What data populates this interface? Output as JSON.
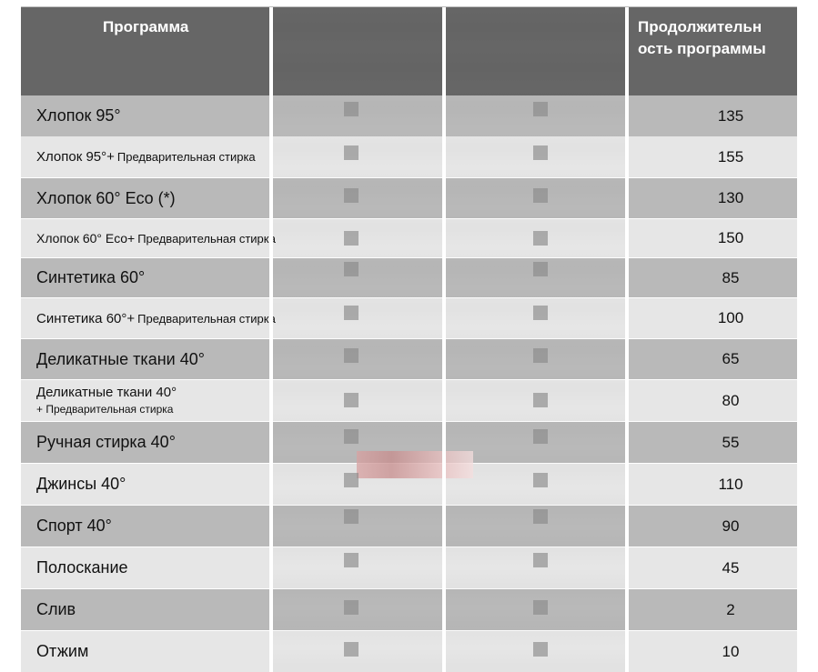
{
  "header": {
    "program": "Программа",
    "duration": "Продолжительн\nость программы"
  },
  "rows": [
    {
      "name": "Хлопок 95°",
      "suffix": "",
      "value": "135",
      "shade": "dark"
    },
    {
      "name": "Хлопок 95°+",
      "suffix": "Предварительная стирка",
      "value": "155",
      "shade": "light"
    },
    {
      "name": "Хлопок 60° Eco (*)",
      "suffix": "",
      "value": "130",
      "shade": "dark"
    },
    {
      "name": "Хлопок 60° Eco+",
      "suffix": "Предварительная стирка",
      "value": "150",
      "shade": "light"
    },
    {
      "name": "Синтетика 60°",
      "suffix": "",
      "value": "85",
      "shade": "dark"
    },
    {
      "name": "Синтетика 60°+",
      "suffix": "Предварительная стирка",
      "value": "100",
      "shade": "light"
    },
    {
      "name": "Деликатные ткани 40°",
      "suffix": "",
      "value": "65",
      "shade": "dark"
    },
    {
      "name": "Деликатные ткани 40°",
      "suffix": "+ Предварительная стирка",
      "value": "80",
      "shade": "light"
    },
    {
      "name": "Ручная стирка 40°",
      "suffix": "",
      "value": "55",
      "shade": "dark"
    },
    {
      "name": "Джинсы 40°",
      "suffix": "",
      "value": "110",
      "shade": "light"
    },
    {
      "name": "Спорт 40°",
      "suffix": "",
      "value": "90",
      "shade": "dark"
    },
    {
      "name": "Полоскание",
      "suffix": "",
      "value": "45",
      "shade": "light"
    },
    {
      "name": "Слив",
      "suffix": "",
      "value": "2",
      "shade": "dark"
    },
    {
      "name": "Отжим",
      "suffix": "",
      "value": "10",
      "shade": "light"
    }
  ]
}
